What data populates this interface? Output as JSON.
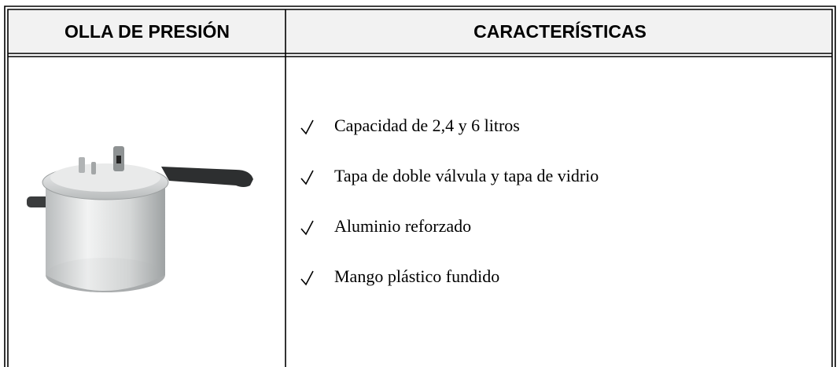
{
  "table": {
    "header": [
      "OLLA DE PRESIÓN",
      "CARACTERÍSTICAS"
    ],
    "features": [
      "Capacidad de 2,4 y 6 litros",
      "Tapa de doble válvula y tapa de vidrio",
      "Aluminio reforzado",
      "Mango plástico fundido"
    ]
  }
}
